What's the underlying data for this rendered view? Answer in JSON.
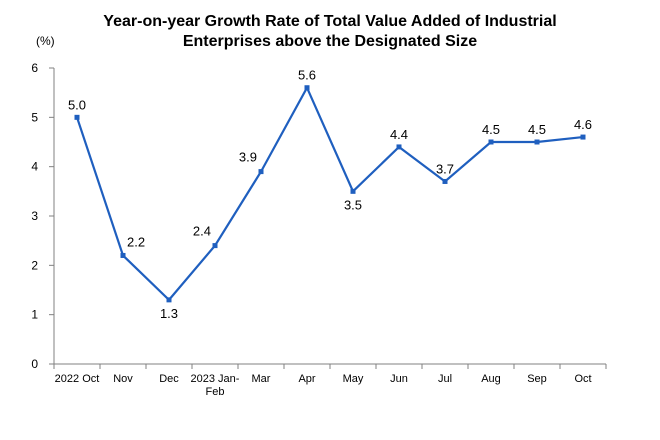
{
  "chart_data": {
    "type": "line",
    "title_line1": "Year-on-year Growth Rate of Total Value Added of Industrial",
    "title_line2": "Enterprises above the Designated Size",
    "unit_label": "(%)",
    "categories": [
      [
        "2022 Oct"
      ],
      [
        "Nov"
      ],
      [
        "Dec"
      ],
      [
        "2023 Jan-",
        "Feb"
      ],
      [
        "Mar"
      ],
      [
        "Apr"
      ],
      [
        "May"
      ],
      [
        "Jun"
      ],
      [
        "Jul"
      ],
      [
        "Aug"
      ],
      [
        "Sep"
      ],
      [
        "Oct"
      ]
    ],
    "values": [
      5.0,
      2.2,
      1.3,
      2.4,
      3.9,
      5.6,
      3.5,
      4.4,
      3.7,
      4.5,
      4.5,
      4.6
    ],
    "data_labels": [
      "5.0",
      "2.2",
      "1.3",
      "2.4",
      "3.9",
      "5.6",
      "3.5",
      "4.4",
      "3.7",
      "4.5",
      "4.5",
      "4.6"
    ],
    "ylim": [
      0,
      6
    ],
    "yticks": [
      "0",
      "1",
      "2",
      "3",
      "4",
      "5",
      "6"
    ],
    "grid": false,
    "colors": {
      "line": "#1f5fbf",
      "marker": "#1f5fbf",
      "axis": "#808080"
    }
  }
}
